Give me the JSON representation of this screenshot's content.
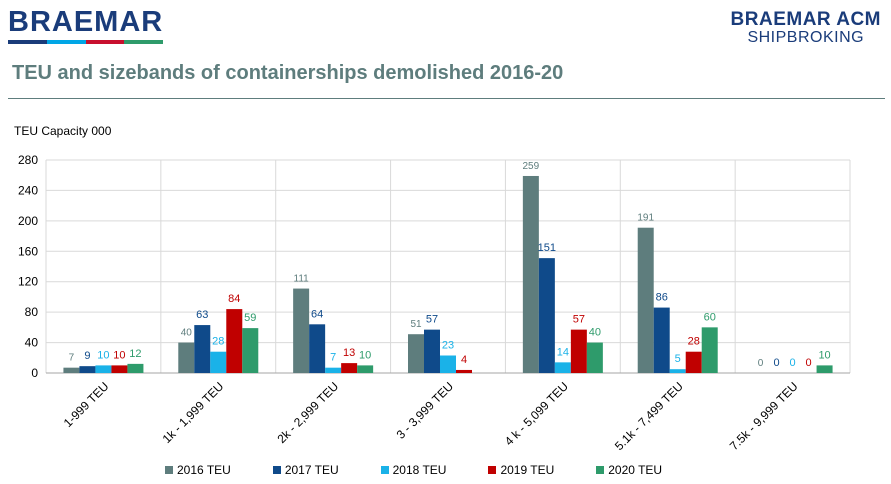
{
  "header": {
    "logo_left": "BRAEMAR",
    "logo_right_line1": "BRAEMAR ACM",
    "logo_right_line2": "SHIPBROKING",
    "stripe_colors": [
      "#1a3c7a",
      "#00a6e6",
      "#c8102e",
      "#2e9b6b"
    ]
  },
  "chart_data": {
    "type": "bar",
    "title": "TEU and sizebands of containerships demolished 2016-20",
    "ylabel": "TEU Capacity 000",
    "xlabel": "",
    "ylim": [
      0,
      280
    ],
    "yticks": [
      0,
      40,
      80,
      120,
      160,
      200,
      240,
      280
    ],
    "grid": true,
    "legend_position": "bottom",
    "categories": [
      "1-999 TEU",
      "1k - 1,999 TEU",
      "2k - 2,999 TEU",
      "3 - 3,999 TEU",
      "4 k - 5,099 TEU",
      "5.1k - 7,499 TEU",
      "7.5k - 9,999 TEU"
    ],
    "series": [
      {
        "name": "2016 TEU",
        "color": "#5e7d7d",
        "values": [
          7,
          40,
          111,
          51,
          259,
          191,
          0
        ]
      },
      {
        "name": "2017 TEU",
        "color": "#0f4a8a",
        "values": [
          9,
          63,
          64,
          57,
          151,
          86,
          0
        ]
      },
      {
        "name": "2018 TEU",
        "color": "#1ab2e8",
        "values": [
          10,
          28,
          7,
          23,
          14,
          5,
          0
        ]
      },
      {
        "name": "2019 TEU",
        "color": "#c00000",
        "values": [
          10,
          84,
          13,
          4,
          57,
          28,
          0
        ]
      },
      {
        "name": "2020 TEU",
        "color": "#2e9b6b",
        "values": [
          12,
          59,
          10,
          null,
          40,
          60,
          10
        ]
      }
    ]
  }
}
